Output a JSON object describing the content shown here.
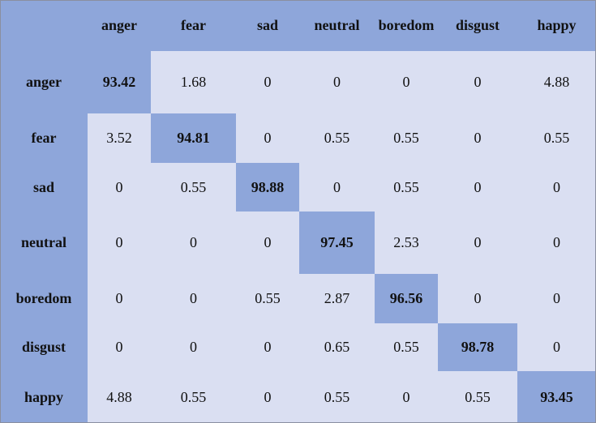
{
  "chart_data": {
    "type": "table",
    "columns": [
      "anger",
      "fear",
      "sad",
      "neutral",
      "boredom",
      "disgust",
      "happy"
    ],
    "rows": [
      "anger",
      "fear",
      "sad",
      "neutral",
      "boredom",
      "disgust",
      "happy"
    ],
    "values": [
      [
        "93.42",
        "1.68",
        "0",
        "0",
        "0",
        "0",
        "4.88"
      ],
      [
        "3.52",
        "94.81",
        "0",
        "0.55",
        "0.55",
        "0",
        "0.55"
      ],
      [
        "0",
        "0.55",
        "98.88",
        "0",
        "0.55",
        "0",
        "0"
      ],
      [
        "0",
        "0",
        "0",
        "97.45",
        "2.53",
        "0",
        "0"
      ],
      [
        "0",
        "0",
        "0.55",
        "2.87",
        "96.56",
        "0",
        "0"
      ],
      [
        "0",
        "0",
        "0",
        "0.65",
        "0.55",
        "98.78",
        "0"
      ],
      [
        "4.88",
        "0.55",
        "0",
        "0.55",
        "0",
        "0.55",
        "93.45"
      ]
    ],
    "colors": {
      "header": "#8ea6da",
      "diagonal": "#8ea6da",
      "cell": "#dadff2"
    }
  }
}
